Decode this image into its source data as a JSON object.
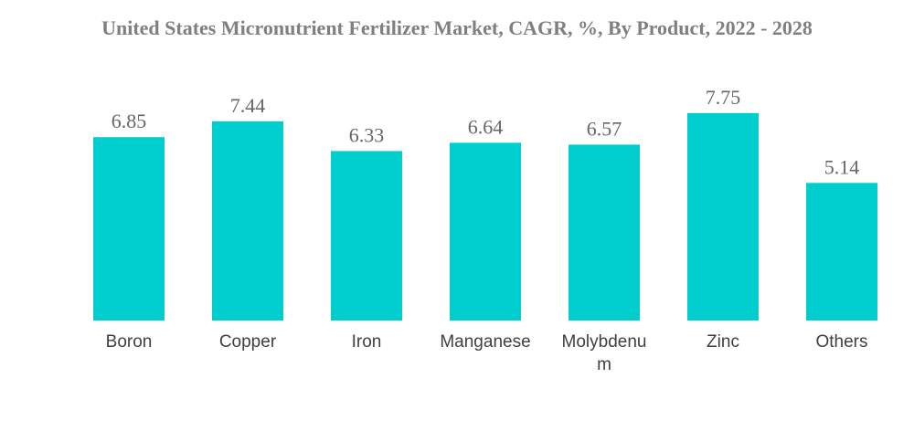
{
  "title": "United States Micronutrient Fertilizer Market, CAGR, %, By Product, 2022 - 2028",
  "chart_data": {
    "type": "bar",
    "title": "United States Micronutrient Fertilizer Market, CAGR, %, By Product, 2022 - 2028",
    "categories": [
      "Boron",
      "Copper",
      "Iron",
      "Manganese",
      "Molybdenum",
      "Zinc",
      "Others"
    ],
    "category_display": [
      [
        "Boron"
      ],
      [
        "Copper"
      ],
      [
        "Iron"
      ],
      [
        "Manganese"
      ],
      [
        "Molybdenu",
        "m"
      ],
      [
        "Zinc"
      ],
      [
        "Others"
      ]
    ],
    "values": [
      6.85,
      7.44,
      6.33,
      6.64,
      6.57,
      7.75,
      5.14
    ],
    "value_labels": [
      "6.85",
      "7.44",
      "6.33",
      "6.64",
      "6.57",
      "7.75",
      "5.14"
    ],
    "ylim": [
      0,
      10.2
    ],
    "xlabel": "",
    "ylabel": "",
    "grid": false,
    "legend": "none",
    "bar_color": "#00cdcd"
  }
}
